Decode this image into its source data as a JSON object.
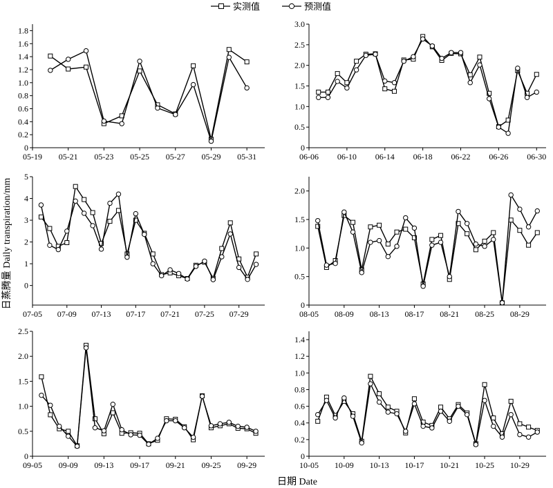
{
  "legend": {
    "measured_label": "实测值",
    "predicted_label": "预测值"
  },
  "y_axis_title": "日蒸腾量 Daily transpiration/mm",
  "x_axis_title": "日期 Date",
  "chart_data": [
    {
      "type": "line",
      "month": "05",
      "ylim": [
        0,
        1.9
      ],
      "yticks": [
        0,
        0.2,
        0.4,
        0.6,
        0.8,
        1.0,
        1.2,
        1.4,
        1.6,
        1.8
      ],
      "ytick_labels": [
        "0",
        "0.2",
        "0.4",
        "0.6",
        "0.8",
        "1.0",
        "1.2",
        "1.4",
        "1.6",
        "1.8"
      ],
      "xlim": [
        19,
        32
      ],
      "xticks": [
        19,
        21,
        23,
        25,
        27,
        29,
        31
      ],
      "xtick_labels": [
        "05-19",
        "05-21",
        "05-23",
        "05-25",
        "05-27",
        "05-29",
        "05-31"
      ],
      "x": [
        20,
        21,
        22,
        23,
        24,
        25,
        26,
        27,
        28,
        29,
        30,
        31
      ],
      "series": [
        {
          "name": "实测值",
          "marker": "square",
          "values": [
            1.41,
            1.21,
            1.24,
            0.37,
            0.49,
            1.18,
            0.66,
            0.52,
            1.26,
            0.13,
            1.51,
            1.32
          ]
        },
        {
          "name": "预测值",
          "marker": "circle",
          "values": [
            1.19,
            1.36,
            1.49,
            0.41,
            0.37,
            1.33,
            0.61,
            0.51,
            0.97,
            0.1,
            1.39,
            0.92
          ]
        }
      ]
    },
    {
      "type": "line",
      "month": "06",
      "ylim": [
        0,
        3.0
      ],
      "yticks": [
        0,
        0.5,
        1.0,
        1.5,
        2.0,
        2.5,
        3.0
      ],
      "ytick_labels": [
        "0",
        "0.5",
        "1.0",
        "1.5",
        "2.0",
        "2.5",
        "3.0"
      ],
      "xlim": [
        6,
        31
      ],
      "xticks": [
        6,
        10,
        14,
        18,
        22,
        26,
        30
      ],
      "xtick_labels": [
        "06-06",
        "06-10",
        "06-14",
        "06-18",
        "06-22",
        "06-26",
        "06-30"
      ],
      "x": [
        7,
        8,
        9,
        10,
        11,
        12,
        13,
        14,
        15,
        16,
        17,
        18,
        19,
        20,
        21,
        22,
        23,
        24,
        25,
        26,
        27,
        28,
        29,
        30
      ],
      "series": [
        {
          "name": "实测值",
          "marker": "square",
          "values": [
            1.35,
            1.35,
            1.8,
            1.58,
            2.1,
            2.27,
            2.28,
            1.43,
            1.37,
            2.13,
            2.15,
            2.7,
            2.45,
            2.12,
            2.29,
            2.28,
            1.77,
            2.2,
            1.32,
            0.51,
            0.67,
            1.87,
            1.32,
            1.78
          ]
        },
        {
          "name": "预测值",
          "marker": "circle",
          "values": [
            1.22,
            1.22,
            1.61,
            1.45,
            1.89,
            2.24,
            2.27,
            1.62,
            1.58,
            2.1,
            2.21,
            2.64,
            2.47,
            2.17,
            2.31,
            2.31,
            1.58,
            2.01,
            1.19,
            0.5,
            0.35,
            1.93,
            1.22,
            1.35
          ]
        }
      ]
    },
    {
      "type": "line",
      "month": "07",
      "ylim": [
        -0.9,
        5
      ],
      "yticks": [
        0,
        1,
        2,
        3,
        4,
        5
      ],
      "ytick_labels": [
        "0",
        "1",
        "2",
        "3",
        "4",
        "5"
      ],
      "xlim": [
        5,
        32
      ],
      "xticks": [
        5,
        9,
        13,
        17,
        21,
        25,
        29
      ],
      "xtick_labels": [
        "07-05",
        "07-09",
        "07-13",
        "07-17",
        "07-21",
        "07-25",
        "07-29"
      ],
      "x": [
        6,
        7,
        8,
        9,
        10,
        11,
        12,
        13,
        14,
        15,
        16,
        17,
        18,
        19,
        20,
        21,
        22,
        23,
        24,
        25,
        26,
        27,
        28,
        29,
        30,
        31
      ],
      "series": [
        {
          "name": "实测值",
          "marker": "square",
          "values": [
            3.15,
            2.62,
            1.8,
            1.97,
            4.55,
            3.95,
            3.35,
            1.93,
            2.95,
            3.45,
            1.45,
            3.0,
            2.4,
            1.45,
            0.5,
            0.58,
            0.45,
            0.32,
            0.93,
            1.07,
            0.33,
            1.7,
            2.88,
            1.22,
            0.38,
            1.45
          ]
        },
        {
          "name": "预测值",
          "marker": "circle",
          "values": [
            3.7,
            1.85,
            1.65,
            2.5,
            3.88,
            3.32,
            2.75,
            1.67,
            3.78,
            4.2,
            1.3,
            3.3,
            2.35,
            1.0,
            0.45,
            0.72,
            0.55,
            0.3,
            0.88,
            1.12,
            0.27,
            1.32,
            2.37,
            0.83,
            0.28,
            0.97
          ]
        }
      ]
    },
    {
      "type": "line",
      "month": "08",
      "ylim": [
        0,
        2.25
      ],
      "yticks": [
        0,
        0.5,
        1.0,
        1.5,
        2.0
      ],
      "ytick_labels": [
        "0",
        "0.5",
        "1.0",
        "1.5",
        "2.0"
      ],
      "xlim": [
        5,
        32
      ],
      "xticks": [
        5,
        9,
        13,
        17,
        21,
        25,
        29
      ],
      "xtick_labels": [
        "08-05",
        "08-09",
        "08-13",
        "08-17",
        "08-21",
        "08-25",
        "08-29"
      ],
      "x": [
        6,
        7,
        8,
        9,
        10,
        11,
        12,
        13,
        14,
        15,
        16,
        17,
        18,
        19,
        20,
        21,
        22,
        23,
        24,
        25,
        26,
        27,
        28,
        29,
        30,
        31
      ],
      "series": [
        {
          "name": "实测值",
          "marker": "square",
          "values": [
            1.38,
            0.66,
            0.78,
            1.57,
            1.45,
            0.62,
            1.37,
            1.4,
            1.07,
            1.28,
            1.33,
            1.18,
            0.37,
            1.15,
            1.22,
            0.45,
            1.43,
            1.25,
            0.97,
            1.12,
            1.27,
            0.04,
            1.49,
            1.31,
            1.05,
            1.27
          ]
        },
        {
          "name": "预测值",
          "marker": "circle",
          "values": [
            1.48,
            0.7,
            0.73,
            1.63,
            1.28,
            0.57,
            1.1,
            1.13,
            0.85,
            1.03,
            1.53,
            1.35,
            0.33,
            1.05,
            1.1,
            0.5,
            1.64,
            1.43,
            1.07,
            1.03,
            1.15,
            0.04,
            1.93,
            1.68,
            1.37,
            1.65
          ]
        }
      ]
    },
    {
      "type": "line",
      "month": "09",
      "ylim": [
        0,
        2.5
      ],
      "yticks": [
        0,
        0.5,
        1.0,
        1.5,
        2.0,
        2.5
      ],
      "ytick_labels": [
        "0",
        "0.5",
        "1.0",
        "1.5",
        "2.0",
        "2.5"
      ],
      "xlim": [
        5,
        31
      ],
      "xticks": [
        5,
        9,
        13,
        17,
        21,
        25,
        29
      ],
      "xtick_labels": [
        "09-05",
        "09-09",
        "09-13",
        "09-17",
        "09-21",
        "09-25",
        "09-29"
      ],
      "x": [
        6,
        7,
        8,
        9,
        10,
        11,
        12,
        13,
        14,
        15,
        16,
        17,
        18,
        19,
        20,
        21,
        22,
        23,
        24,
        25,
        26,
        27,
        28,
        29,
        30
      ],
      "series": [
        {
          "name": "实测值",
          "marker": "square",
          "values": [
            1.59,
            0.83,
            0.55,
            0.5,
            0.21,
            2.22,
            0.75,
            0.45,
            0.87,
            0.46,
            0.47,
            0.46,
            0.25,
            0.32,
            0.75,
            0.74,
            0.59,
            0.33,
            1.21,
            0.57,
            0.61,
            0.65,
            0.56,
            0.55,
            0.46
          ]
        },
        {
          "name": "预测值",
          "marker": "circle",
          "values": [
            1.22,
            1.02,
            0.6,
            0.4,
            0.2,
            2.17,
            0.57,
            0.51,
            1.04,
            0.53,
            0.43,
            0.42,
            0.24,
            0.36,
            0.71,
            0.71,
            0.57,
            0.38,
            1.2,
            0.61,
            0.65,
            0.68,
            0.6,
            0.58,
            0.5
          ]
        }
      ]
    },
    {
      "type": "line",
      "month": "10",
      "ylim": [
        0,
        1.5
      ],
      "yticks": [
        0,
        0.2,
        0.4,
        0.6,
        0.8,
        1.0,
        1.2,
        1.4
      ],
      "ytick_labels": [
        "0",
        "0.2",
        "0.4",
        "0.6",
        "0.8",
        "1.0",
        "1.2",
        "1.4"
      ],
      "xlim": [
        5,
        32
      ],
      "xticks": [
        5,
        9,
        13,
        17,
        21,
        25,
        29
      ],
      "xtick_labels": [
        "10-05",
        "10-09",
        "10-13",
        "10-17",
        "10-21",
        "10-25",
        "10-29"
      ],
      "x": [
        6,
        7,
        8,
        9,
        10,
        11,
        12,
        13,
        14,
        15,
        16,
        17,
        18,
        19,
        20,
        21,
        22,
        23,
        24,
        25,
        26,
        27,
        28,
        29,
        30,
        31
      ],
      "series": [
        {
          "name": "实测值",
          "marker": "square",
          "values": [
            0.42,
            0.71,
            0.49,
            0.66,
            0.51,
            0.18,
            0.96,
            0.75,
            0.59,
            0.54,
            0.28,
            0.69,
            0.41,
            0.37,
            0.59,
            0.45,
            0.62,
            0.52,
            0.15,
            0.86,
            0.46,
            0.27,
            0.66,
            0.39,
            0.35,
            0.31
          ]
        },
        {
          "name": "预测值",
          "marker": "circle",
          "values": [
            0.5,
            0.67,
            0.46,
            0.7,
            0.48,
            0.16,
            0.87,
            0.65,
            0.53,
            0.51,
            0.3,
            0.63,
            0.36,
            0.34,
            0.54,
            0.42,
            0.6,
            0.5,
            0.14,
            0.67,
            0.36,
            0.23,
            0.5,
            0.26,
            0.23,
            0.29
          ]
        }
      ]
    }
  ]
}
